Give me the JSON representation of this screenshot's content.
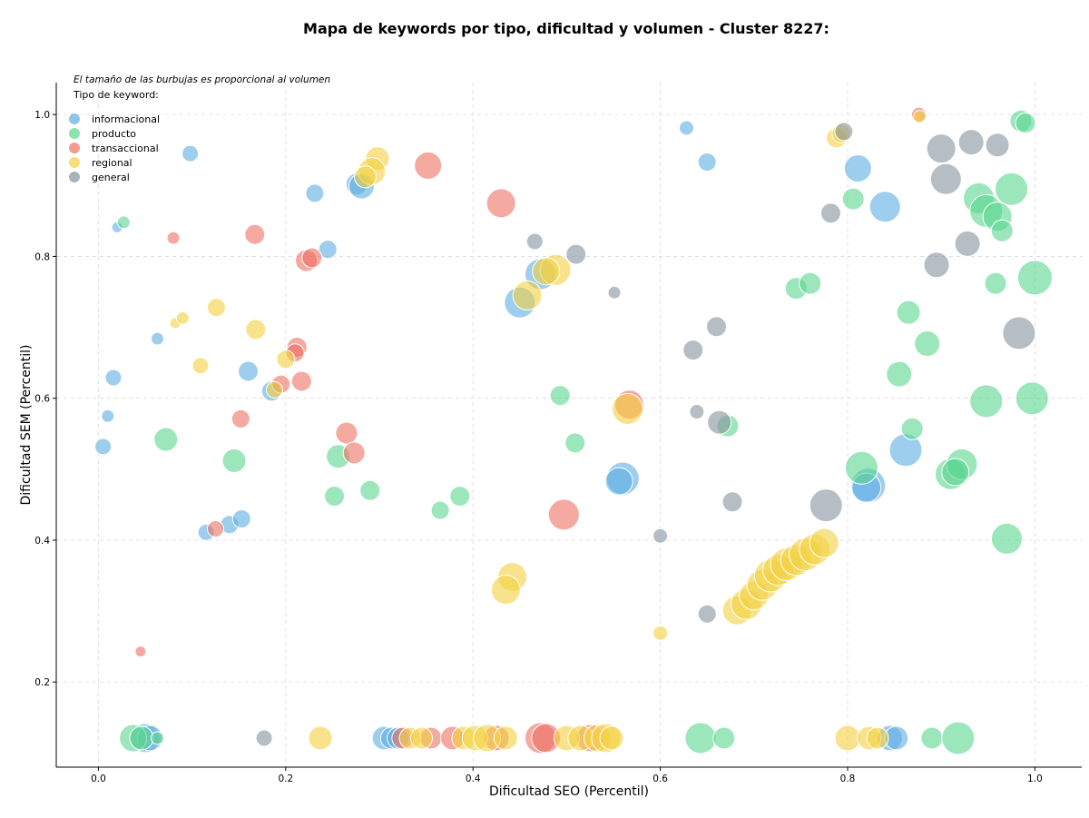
{
  "chart_data": {
    "type": "scatter",
    "title": "Mapa de keywords por tipo, dificultad y volumen - Cluster 8227:",
    "xlabel": "Dificultad SEO (Percentil)",
    "ylabel": "Dificultad SEM (Percentil)",
    "xlim": [
      -0.045,
      1.05
    ],
    "ylim": [
      0.08,
      1.045
    ],
    "xticks": [
      "0.0",
      "0.2",
      "0.4",
      "0.6",
      "0.8",
      "1.0"
    ],
    "yticks": [
      "0.2",
      "0.4",
      "0.6",
      "0.8",
      "1.0"
    ],
    "xtick_values": [
      0.0,
      0.2,
      0.4,
      0.6,
      0.8,
      1.0
    ],
    "ytick_values": [
      0.2,
      0.4,
      0.6,
      0.8,
      1.0
    ],
    "grid": true,
    "note": "El tamaño de las burbujas es proporcional al volumen",
    "legend_title": "Tipo de keyword:",
    "legend_position": "top-left",
    "bubble_size": "volume",
    "series": [
      {
        "name": "informacional",
        "color": "#5DADE2",
        "points": [
          {
            "x": 0.628,
            "y": 0.981,
            "s": 8
          },
          {
            "x": 0.65,
            "y": 0.933,
            "s": 10
          },
          {
            "x": 0.811,
            "y": 0.924,
            "s": 15
          },
          {
            "x": 0.84,
            "y": 0.87,
            "s": 17
          },
          {
            "x": 0.098,
            "y": 0.945,
            "s": 9
          },
          {
            "x": 0.231,
            "y": 0.889,
            "s": 10
          },
          {
            "x": 0.276,
            "y": 0.902,
            "s": 12
          },
          {
            "x": 0.281,
            "y": 0.899,
            "s": 14
          },
          {
            "x": 0.02,
            "y": 0.841,
            "s": 6
          },
          {
            "x": 0.245,
            "y": 0.81,
            "s": 10
          },
          {
            "x": 0.063,
            "y": 0.684,
            "s": 7
          },
          {
            "x": 0.016,
            "y": 0.629,
            "s": 9
          },
          {
            "x": 0.16,
            "y": 0.638,
            "s": 11
          },
          {
            "x": 0.185,
            "y": 0.61,
            "s": 11
          },
          {
            "x": 0.01,
            "y": 0.575,
            "s": 7
          },
          {
            "x": 0.005,
            "y": 0.532,
            "s": 9
          },
          {
            "x": 0.115,
            "y": 0.411,
            "s": 9
          },
          {
            "x": 0.14,
            "y": 0.422,
            "s": 10
          },
          {
            "x": 0.153,
            "y": 0.43,
            "s": 10
          },
          {
            "x": 0.472,
            "y": 0.775,
            "s": 17
          },
          {
            "x": 0.45,
            "y": 0.735,
            "s": 17
          },
          {
            "x": 0.56,
            "y": 0.487,
            "s": 18
          },
          {
            "x": 0.556,
            "y": 0.483,
            "s": 15
          },
          {
            "x": 0.862,
            "y": 0.527,
            "s": 18
          },
          {
            "x": 0.822,
            "y": 0.477,
            "s": 19
          },
          {
            "x": 0.82,
            "y": 0.474,
            "s": 16
          },
          {
            "x": 0.05,
            "y": 0.121,
            "s": 16
          },
          {
            "x": 0.055,
            "y": 0.121,
            "s": 14
          },
          {
            "x": 0.305,
            "y": 0.121,
            "s": 13
          },
          {
            "x": 0.313,
            "y": 0.121,
            "s": 12
          },
          {
            "x": 0.32,
            "y": 0.121,
            "s": 12
          },
          {
            "x": 0.845,
            "y": 0.121,
            "s": 14
          },
          {
            "x": 0.852,
            "y": 0.121,
            "s": 13
          }
        ]
      },
      {
        "name": "producto",
        "color": "#58D68D",
        "points": [
          {
            "x": 0.027,
            "y": 0.848,
            "s": 7
          },
          {
            "x": 0.072,
            "y": 0.542,
            "s": 13
          },
          {
            "x": 0.145,
            "y": 0.512,
            "s": 13
          },
          {
            "x": 0.252,
            "y": 0.462,
            "s": 11
          },
          {
            "x": 0.29,
            "y": 0.47,
            "s": 11
          },
          {
            "x": 0.256,
            "y": 0.518,
            "s": 13
          },
          {
            "x": 0.365,
            "y": 0.442,
            "s": 10
          },
          {
            "x": 0.386,
            "y": 0.462,
            "s": 11
          },
          {
            "x": 0.493,
            "y": 0.604,
            "s": 11
          },
          {
            "x": 0.509,
            "y": 0.537,
            "s": 11
          },
          {
            "x": 0.672,
            "y": 0.561,
            "s": 12
          },
          {
            "x": 0.745,
            "y": 0.755,
            "s": 12
          },
          {
            "x": 0.76,
            "y": 0.762,
            "s": 12
          },
          {
            "x": 0.865,
            "y": 0.721,
            "s": 13
          },
          {
            "x": 0.885,
            "y": 0.677,
            "s": 14
          },
          {
            "x": 0.855,
            "y": 0.634,
            "s": 14
          },
          {
            "x": 0.869,
            "y": 0.557,
            "s": 12
          },
          {
            "x": 0.806,
            "y": 0.881,
            "s": 12
          },
          {
            "x": 0.815,
            "y": 0.502,
            "s": 18
          },
          {
            "x": 0.91,
            "y": 0.493,
            "s": 17
          },
          {
            "x": 0.922,
            "y": 0.507,
            "s": 17
          },
          {
            "x": 0.915,
            "y": 0.496,
            "s": 15
          },
          {
            "x": 0.94,
            "y": 0.882,
            "s": 17
          },
          {
            "x": 0.948,
            "y": 0.864,
            "s": 18
          },
          {
            "x": 0.96,
            "y": 0.856,
            "s": 16
          },
          {
            "x": 0.975,
            "y": 0.895,
            "s": 18
          },
          {
            "x": 0.965,
            "y": 0.836,
            "s": 12
          },
          {
            "x": 0.958,
            "y": 0.762,
            "s": 12
          },
          {
            "x": 1.0,
            "y": 0.77,
            "s": 19
          },
          {
            "x": 0.948,
            "y": 0.596,
            "s": 18
          },
          {
            "x": 0.997,
            "y": 0.6,
            "s": 18
          },
          {
            "x": 0.97,
            "y": 0.402,
            "s": 17
          },
          {
            "x": 0.985,
            "y": 0.991,
            "s": 12
          },
          {
            "x": 0.99,
            "y": 0.988,
            "s": 11
          },
          {
            "x": 0.037,
            "y": 0.121,
            "s": 15
          },
          {
            "x": 0.046,
            "y": 0.121,
            "s": 13
          },
          {
            "x": 0.063,
            "y": 0.121,
            "s": 7
          },
          {
            "x": 0.643,
            "y": 0.121,
            "s": 17
          },
          {
            "x": 0.668,
            "y": 0.121,
            "s": 12
          },
          {
            "x": 0.89,
            "y": 0.121,
            "s": 12
          },
          {
            "x": 0.918,
            "y": 0.121,
            "s": 18
          }
        ]
      },
      {
        "name": "transaccional",
        "color": "#EC7063",
        "points": [
          {
            "x": 0.352,
            "y": 0.928,
            "s": 15
          },
          {
            "x": 0.43,
            "y": 0.875,
            "s": 16
          },
          {
            "x": 0.167,
            "y": 0.831,
            "s": 11
          },
          {
            "x": 0.08,
            "y": 0.826,
            "s": 7
          },
          {
            "x": 0.222,
            "y": 0.794,
            "s": 12
          },
          {
            "x": 0.228,
            "y": 0.798,
            "s": 11
          },
          {
            "x": 0.212,
            "y": 0.672,
            "s": 11
          },
          {
            "x": 0.21,
            "y": 0.664,
            "s": 10
          },
          {
            "x": 0.217,
            "y": 0.624,
            "s": 11
          },
          {
            "x": 0.195,
            "y": 0.62,
            "s": 10
          },
          {
            "x": 0.152,
            "y": 0.571,
            "s": 10
          },
          {
            "x": 0.265,
            "y": 0.551,
            "s": 12
          },
          {
            "x": 0.273,
            "y": 0.523,
            "s": 12
          },
          {
            "x": 0.125,
            "y": 0.416,
            "s": 9
          },
          {
            "x": 0.045,
            "y": 0.243,
            "s": 6
          },
          {
            "x": 0.497,
            "y": 0.436,
            "s": 17
          },
          {
            "x": 0.567,
            "y": 0.591,
            "s": 16
          },
          {
            "x": 0.876,
            "y": 1.0,
            "s": 8
          },
          {
            "x": 0.325,
            "y": 0.121,
            "s": 12
          },
          {
            "x": 0.355,
            "y": 0.121,
            "s": 12
          },
          {
            "x": 0.378,
            "y": 0.121,
            "s": 13
          },
          {
            "x": 0.425,
            "y": 0.121,
            "s": 14
          },
          {
            "x": 0.472,
            "y": 0.121,
            "s": 17
          },
          {
            "x": 0.478,
            "y": 0.121,
            "s": 16
          },
          {
            "x": 0.525,
            "y": 0.121,
            "s": 15
          }
        ]
      },
      {
        "name": "regional",
        "color": "#F4D03F",
        "points": [
          {
            "x": 0.298,
            "y": 0.938,
            "s": 13
          },
          {
            "x": 0.292,
            "y": 0.92,
            "s": 15
          },
          {
            "x": 0.285,
            "y": 0.912,
            "s": 12
          },
          {
            "x": 0.082,
            "y": 0.706,
            "s": 6
          },
          {
            "x": 0.09,
            "y": 0.713,
            "s": 7
          },
          {
            "x": 0.126,
            "y": 0.728,
            "s": 10
          },
          {
            "x": 0.168,
            "y": 0.697,
            "s": 11
          },
          {
            "x": 0.109,
            "y": 0.646,
            "s": 9
          },
          {
            "x": 0.2,
            "y": 0.655,
            "s": 10
          },
          {
            "x": 0.188,
            "y": 0.612,
            "s": 9
          },
          {
            "x": 0.458,
            "y": 0.745,
            "s": 16
          },
          {
            "x": 0.488,
            "y": 0.781,
            "s": 17
          },
          {
            "x": 0.478,
            "y": 0.779,
            "s": 15
          },
          {
            "x": 0.565,
            "y": 0.585,
            "s": 17
          },
          {
            "x": 0.442,
            "y": 0.348,
            "s": 16
          },
          {
            "x": 0.435,
            "y": 0.33,
            "s": 16
          },
          {
            "x": 0.6,
            "y": 0.269,
            "s": 8
          },
          {
            "x": 0.788,
            "y": 0.967,
            "s": 11
          },
          {
            "x": 0.793,
            "y": 0.973,
            "s": 10
          },
          {
            "x": 0.877,
            "y": 0.997,
            "s": 7
          },
          {
            "x": 0.682,
            "y": 0.301,
            "s": 16
          },
          {
            "x": 0.692,
            "y": 0.31,
            "s": 17
          },
          {
            "x": 0.7,
            "y": 0.322,
            "s": 16
          },
          {
            "x": 0.709,
            "y": 0.337,
            "s": 17
          },
          {
            "x": 0.718,
            "y": 0.35,
            "s": 18
          },
          {
            "x": 0.726,
            "y": 0.358,
            "s": 17
          },
          {
            "x": 0.735,
            "y": 0.366,
            "s": 18
          },
          {
            "x": 0.745,
            "y": 0.372,
            "s": 17
          },
          {
            "x": 0.755,
            "y": 0.38,
            "s": 18
          },
          {
            "x": 0.765,
            "y": 0.387,
            "s": 17
          },
          {
            "x": 0.775,
            "y": 0.396,
            "s": 16
          },
          {
            "x": 0.237,
            "y": 0.121,
            "s": 13
          },
          {
            "x": 0.333,
            "y": 0.121,
            "s": 12
          },
          {
            "x": 0.345,
            "y": 0.121,
            "s": 12
          },
          {
            "x": 0.39,
            "y": 0.121,
            "s": 13
          },
          {
            "x": 0.402,
            "y": 0.121,
            "s": 14
          },
          {
            "x": 0.415,
            "y": 0.121,
            "s": 15
          },
          {
            "x": 0.435,
            "y": 0.121,
            "s": 13
          },
          {
            "x": 0.5,
            "y": 0.121,
            "s": 14
          },
          {
            "x": 0.515,
            "y": 0.121,
            "s": 14
          },
          {
            "x": 0.533,
            "y": 0.121,
            "s": 15
          },
          {
            "x": 0.542,
            "y": 0.121,
            "s": 16
          },
          {
            "x": 0.548,
            "y": 0.121,
            "s": 13
          },
          {
            "x": 0.8,
            "y": 0.121,
            "s": 14
          },
          {
            "x": 0.823,
            "y": 0.121,
            "s": 13
          },
          {
            "x": 0.832,
            "y": 0.121,
            "s": 12
          }
        ]
      },
      {
        "name": "general",
        "color": "#85929E",
        "points": [
          {
            "x": 0.466,
            "y": 0.821,
            "s": 9
          },
          {
            "x": 0.51,
            "y": 0.803,
            "s": 11
          },
          {
            "x": 0.551,
            "y": 0.749,
            "s": 7
          },
          {
            "x": 0.66,
            "y": 0.701,
            "s": 11
          },
          {
            "x": 0.635,
            "y": 0.668,
            "s": 11
          },
          {
            "x": 0.639,
            "y": 0.581,
            "s": 8
          },
          {
            "x": 0.663,
            "y": 0.566,
            "s": 13
          },
          {
            "x": 0.677,
            "y": 0.454,
            "s": 11
          },
          {
            "x": 0.6,
            "y": 0.406,
            "s": 8
          },
          {
            "x": 0.65,
            "y": 0.296,
            "s": 10
          },
          {
            "x": 0.777,
            "y": 0.449,
            "s": 18
          },
          {
            "x": 0.782,
            "y": 0.861,
            "s": 11
          },
          {
            "x": 0.796,
            "y": 0.976,
            "s": 10
          },
          {
            "x": 0.9,
            "y": 0.952,
            "s": 16
          },
          {
            "x": 0.932,
            "y": 0.961,
            "s": 14
          },
          {
            "x": 0.96,
            "y": 0.957,
            "s": 13
          },
          {
            "x": 0.905,
            "y": 0.909,
            "s": 17
          },
          {
            "x": 0.928,
            "y": 0.818,
            "s": 14
          },
          {
            "x": 0.895,
            "y": 0.788,
            "s": 14
          },
          {
            "x": 0.983,
            "y": 0.692,
            "s": 18
          },
          {
            "x": 0.177,
            "y": 0.121,
            "s": 9
          }
        ]
      }
    ]
  }
}
